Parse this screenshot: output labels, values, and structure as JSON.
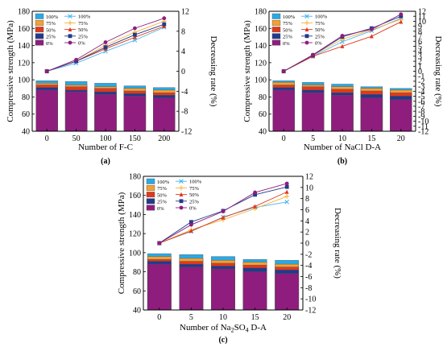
{
  "figure": {
    "panels": [
      {
        "label": "(a)"
      },
      {
        "label": "(b)"
      },
      {
        "label": "(c)"
      }
    ]
  },
  "series_styles": [
    {
      "level": "100%",
      "bar_color": "#29a9e6",
      "line_color": "#47b5ee",
      "marker": "x"
    },
    {
      "level": "75%",
      "bar_color": "#f5a130",
      "line_color": "#f5b33a",
      "marker": "plus"
    },
    {
      "level": "50%",
      "bar_color": "#e0391d",
      "line_color": "#e0391d",
      "marker": "triangle"
    },
    {
      "level": "25%",
      "bar_color": "#223a8c",
      "line_color": "#223a8c",
      "marker": "square"
    },
    {
      "level": "0%",
      "bar_color": "#8e1d7d",
      "line_color": "#8e1d7d",
      "marker": "circle"
    }
  ],
  "chart_data": [
    {
      "panel": "(a)",
      "type": "bar+line",
      "categories": [
        "0",
        "50",
        "100",
        "150",
        "200"
      ],
      "xlabel": "Number of F-C",
      "ylabel": "Compressive strength (MPa)",
      "ylim": [
        40,
        180
      ],
      "yticks": [
        40,
        60,
        80,
        100,
        120,
        140,
        160,
        180
      ],
      "y2label": "Decreasing rate (%)",
      "y2lim": [
        -12,
        12
      ],
      "y2ticks": [
        -12,
        -8,
        -4,
        0,
        4,
        8,
        12
      ],
      "legend_position": "top-left",
      "legend_columns": 2,
      "bar_series": [
        {
          "name": "100%",
          "values": [
            99.0,
            98.0,
            96.0,
            93.0,
            91.0
          ]
        },
        {
          "name": "75%",
          "values": [
            96.0,
            94.0,
            92.0,
            90.0,
            88.0
          ]
        },
        {
          "name": "50%",
          "values": [
            94.0,
            92.0,
            90.0,
            87.0,
            85.0
          ]
        },
        {
          "name": "25%",
          "values": [
            91.0,
            88.0,
            86.0,
            84.0,
            82.0
          ]
        },
        {
          "name": "0%",
          "values": [
            88.0,
            86.0,
            83.0,
            81.0,
            79.0
          ]
        }
      ],
      "line_series": [
        {
          "name": "100%",
          "values": [
            0.0,
            1.6,
            4.0,
            6.2,
            8.8
          ]
        },
        {
          "name": "75%",
          "values": [
            0.0,
            2.0,
            5.2,
            7.8,
            10.0
          ]
        },
        {
          "name": "50%",
          "values": [
            0.0,
            2.0,
            4.5,
            6.8,
            9.0
          ]
        },
        {
          "name": "25%",
          "values": [
            0.0,
            2.0,
            4.8,
            7.3,
            9.4
          ]
        },
        {
          "name": "0%",
          "values": [
            0.0,
            2.3,
            5.8,
            8.6,
            10.6
          ]
        }
      ]
    },
    {
      "panel": "(b)",
      "type": "bar+line",
      "categories": [
        "0",
        "5",
        "10",
        "15",
        "20"
      ],
      "xlabel": "Number of NaCl D-A",
      "ylabel": "Compressive strength (MPa)",
      "ylim": [
        40,
        180
      ],
      "yticks": [
        40,
        60,
        80,
        100,
        120,
        140,
        160,
        180
      ],
      "y2label": "Decreasing rate (%)",
      "y2lim": [
        -12,
        12
      ],
      "y2ticks": [
        -12,
        -11,
        -10,
        -9,
        -8,
        -7,
        -6,
        -5,
        -4,
        -3,
        -2,
        -1,
        0,
        1,
        2,
        3,
        4,
        5,
        6,
        7,
        8,
        9,
        10,
        11,
        12
      ],
      "legend_position": "top-left",
      "legend_columns": 2,
      "bar_series": [
        {
          "name": "100%",
          "values": [
            99.0,
            97.0,
            95.0,
            92.0,
            90.0
          ]
        },
        {
          "name": "75%",
          "values": [
            97.0,
            94.0,
            92.0,
            90.0,
            88.0
          ]
        },
        {
          "name": "50%",
          "values": [
            94.0,
            92.0,
            89.0,
            87.0,
            85.0
          ]
        },
        {
          "name": "25%",
          "values": [
            91.0,
            88.0,
            85.0,
            83.0,
            81.0
          ]
        },
        {
          "name": "0%",
          "values": [
            88.0,
            85.0,
            82.0,
            79.0,
            77.0
          ]
        }
      ],
      "line_series": [
        {
          "name": "100%",
          "values": [
            0.0,
            3.0,
            5.9,
            8.1,
            10.6
          ]
        },
        {
          "name": "75%",
          "values": [
            0.0,
            3.2,
            6.4,
            8.3,
            10.4
          ]
        },
        {
          "name": "50%",
          "values": [
            0.0,
            3.0,
            5.0,
            7.0,
            9.9
          ]
        },
        {
          "name": "25%",
          "values": [
            0.0,
            3.2,
            6.9,
            8.6,
            11.0
          ]
        },
        {
          "name": "0%",
          "values": [
            0.0,
            3.3,
            7.1,
            8.4,
            11.4
          ]
        }
      ]
    },
    {
      "panel": "(c)",
      "type": "bar+line",
      "categories": [
        "0",
        "5",
        "10",
        "15",
        "20"
      ],
      "xlabel": "Number of Na2SO4 D-A",
      "ylabel": "Compressive strength (MPa)",
      "ylim": [
        40,
        180
      ],
      "yticks": [
        40,
        60,
        80,
        100,
        120,
        140,
        160,
        180
      ],
      "y2label": "Decreasing rate (%)",
      "y2lim": [
        -12,
        12
      ],
      "y2ticks": [
        -12,
        -10,
        -8,
        -6,
        -4,
        -2,
        0,
        2,
        4,
        6,
        8,
        10,
        12
      ],
      "legend_position": "top-left",
      "legend_columns": 2,
      "bar_series": [
        {
          "name": "100%",
          "values": [
            99.0,
            98.0,
            96.0,
            93.0,
            92.0
          ]
        },
        {
          "name": "75%",
          "values": [
            96.0,
            94.0,
            92.0,
            90.0,
            88.0
          ]
        },
        {
          "name": "50%",
          "values": [
            93.0,
            91.0,
            89.0,
            87.0,
            85.0
          ]
        },
        {
          "name": "25%",
          "values": [
            91.0,
            88.0,
            86.0,
            84.0,
            82.0
          ]
        },
        {
          "name": "0%",
          "values": [
            88.0,
            85.0,
            83.0,
            80.0,
            78.0
          ]
        }
      ],
      "line_series": [
        {
          "name": "100%",
          "values": [
            0.0,
            2.1,
            4.7,
            6.4,
            7.4
          ]
        },
        {
          "name": "75%",
          "values": [
            0.0,
            2.4,
            4.2,
            6.2,
            8.4
          ]
        },
        {
          "name": "50%",
          "values": [
            0.0,
            2.2,
            4.6,
            6.6,
            9.2
          ]
        },
        {
          "name": "25%",
          "values": [
            0.0,
            3.8,
            5.8,
            8.7,
            10.1
          ]
        },
        {
          "name": "0%",
          "values": [
            0.0,
            3.3,
            5.7,
            9.1,
            10.7
          ]
        }
      ]
    }
  ]
}
